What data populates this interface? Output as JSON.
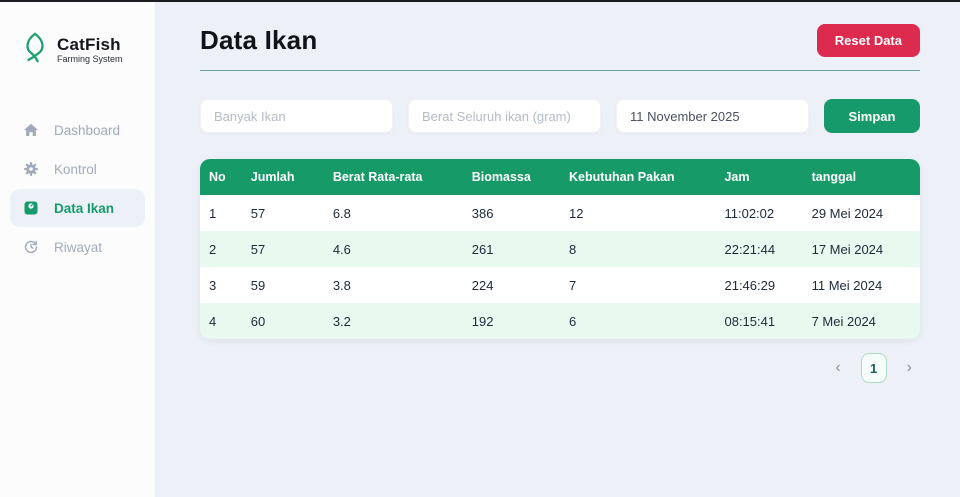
{
  "app": {
    "brand_bold": "Cat",
    "brand_rest": "Fish",
    "brand_sub": "Farming System",
    "logo_icon": "fish-icon"
  },
  "sidebar": {
    "items": [
      {
        "label": "Dashboard",
        "icon": "home-icon",
        "active": false
      },
      {
        "label": "Kontrol",
        "icon": "gear-icon",
        "active": false
      },
      {
        "label": "Data Ikan",
        "icon": "scale-icon",
        "active": true
      },
      {
        "label": "Riwayat",
        "icon": "history-icon",
        "active": false
      }
    ]
  },
  "header": {
    "title": "Data Ikan",
    "reset_label": "Reset Data"
  },
  "form": {
    "fields": [
      {
        "placeholder": "Banyak Ikan",
        "value": ""
      },
      {
        "placeholder": "Berat Seluruh ikan (gram)",
        "value": ""
      },
      {
        "placeholder": "",
        "value": "11 November 2025"
      }
    ],
    "submit_label": "Simpan"
  },
  "table": {
    "columns": [
      "No",
      "Jumlah",
      "Berat Rata-rata",
      "Biomassa",
      "Kebutuhan Pakan",
      "Jam",
      "tanggal"
    ],
    "column_widths": [
      "5.8%",
      "11.4%",
      "19.3%",
      "13.5%",
      "21.6%",
      "12.1%",
      "16.3%"
    ],
    "rows": [
      [
        "1",
        "57",
        "6.8",
        "386",
        "12",
        "11:02:02",
        "29 Mei 2024"
      ],
      [
        "2",
        "57",
        "4.6",
        "261",
        "8",
        "22:21:44",
        "17 Mei 2024"
      ],
      [
        "3",
        "59",
        "3.8",
        "224",
        "7",
        "21:46:29",
        "11 Mei 2024"
      ],
      [
        "4",
        "60",
        "3.2",
        "192",
        "6",
        "08:15:41",
        "7 Mei 2024"
      ]
    ]
  },
  "pagination": {
    "prev": "‹",
    "page": "1",
    "next": "›"
  },
  "colors": {
    "accent_green": "#179a6b",
    "table_header_green": "#169a67",
    "row_stripe_mint": "#e9f9f0",
    "danger_red": "#dc2b4e",
    "page_background": "#edf1f7",
    "muted_text": "#a2aab9",
    "title_underline": "#6aa396"
  }
}
